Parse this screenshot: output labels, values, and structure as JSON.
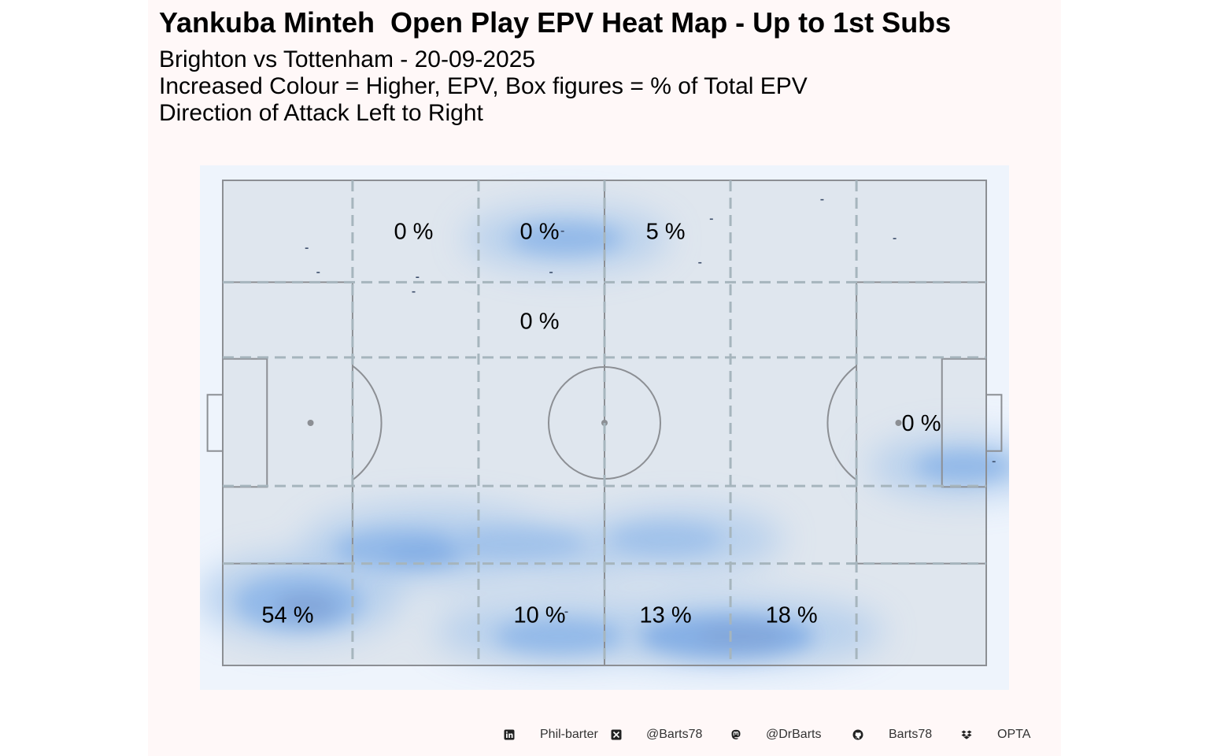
{
  "chart_data": {
    "type": "heatmap",
    "title": "Yankuba Minteh  Open Play EPV Heat Map - Up to 1st Subs",
    "subtitle_lines": [
      "Brighton vs Tottenham - 20-09-2025",
      "Increased Colour = Higher, EPV, Box figures = % of Total EPV",
      "Direction of Attack Left to Right"
    ],
    "xlim": [
      0,
      100
    ],
    "ylim": [
      0,
      100
    ],
    "x_zone_edges": [
      0,
      17,
      33.5,
      50,
      66.5,
      83,
      100
    ],
    "y_zone_edges": [
      0,
      21,
      37,
      63.5,
      79,
      100
    ],
    "zone_labels": [
      {
        "x": 25,
        "y": 89.5,
        "label": "0 %"
      },
      {
        "x": 41.5,
        "y": 89.5,
        "label": "0 %"
      },
      {
        "x": 58,
        "y": 89.5,
        "label": "5 %"
      },
      {
        "x": 91.5,
        "y": 50,
        "label": "0 %"
      },
      {
        "x": 8.5,
        "y": 10.5,
        "label": "54 %"
      },
      {
        "x": 41.5,
        "y": 10.5,
        "label": "10 %"
      },
      {
        "x": 58,
        "y": 10.5,
        "label": "13 %"
      },
      {
        "x": 74.5,
        "y": 10.5,
        "label": "18 %"
      },
      {
        "x": 41.5,
        "y": 71,
        "label": "0 %"
      }
    ],
    "events": [
      {
        "x": 11,
        "y": 86
      },
      {
        "x": 12.5,
        "y": 81
      },
      {
        "x": 25.5,
        "y": 80
      },
      {
        "x": 25,
        "y": 77
      },
      {
        "x": 43,
        "y": 81
      },
      {
        "x": 62.5,
        "y": 83
      },
      {
        "x": 44.5,
        "y": 89.5
      },
      {
        "x": 64,
        "y": 92
      },
      {
        "x": 78.5,
        "y": 96
      },
      {
        "x": 88,
        "y": 88
      },
      {
        "x": 101,
        "y": 42
      },
      {
        "x": 45,
        "y": 11
      }
    ],
    "density_colors": [
      "#a9c8ec",
      "#9dc0ea",
      "#8db6e8",
      "#7eaae4",
      "#7aa0d8",
      "#8f94c0"
    ],
    "pitch_colors": {
      "outer_bg": "#eef4fc",
      "pitch_bg": "#dfe6ee",
      "lines": "#8c8f94",
      "zones": "#a6b5bd"
    }
  },
  "footer": {
    "linkedin": "Phil-barter",
    "x": "@Barts78",
    "mastodon": "@DrBarts",
    "github": "Barts78",
    "source": "OPTA",
    "icons": [
      "linkedin-icon",
      "x-icon",
      "mastodon-icon",
      "github-icon",
      "dropbox-icon"
    ]
  }
}
